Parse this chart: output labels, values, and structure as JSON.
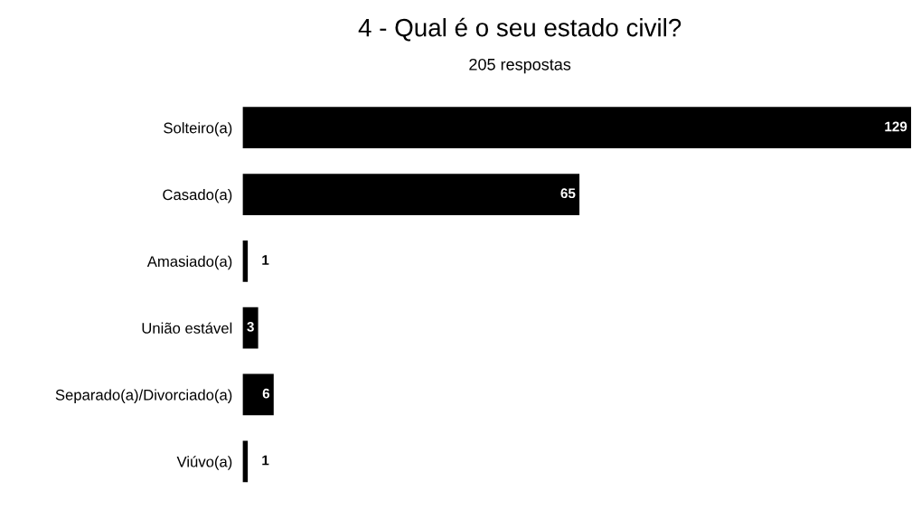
{
  "chart_data": {
    "type": "bar",
    "orientation": "horizontal",
    "title": "4 - Qual é o seu estado civil?",
    "subtitle": "205 respostas",
    "categories": [
      "Solteiro(a)",
      "Casado(a)",
      "Amasiado(a)",
      "União estável",
      "Separado(a)/Divorciado(a)",
      "Viúvo(a)"
    ],
    "values": [
      129,
      65,
      1,
      3,
      6,
      1
    ],
    "color": "#000000",
    "data_labels": true,
    "grid": false,
    "legend": false
  }
}
